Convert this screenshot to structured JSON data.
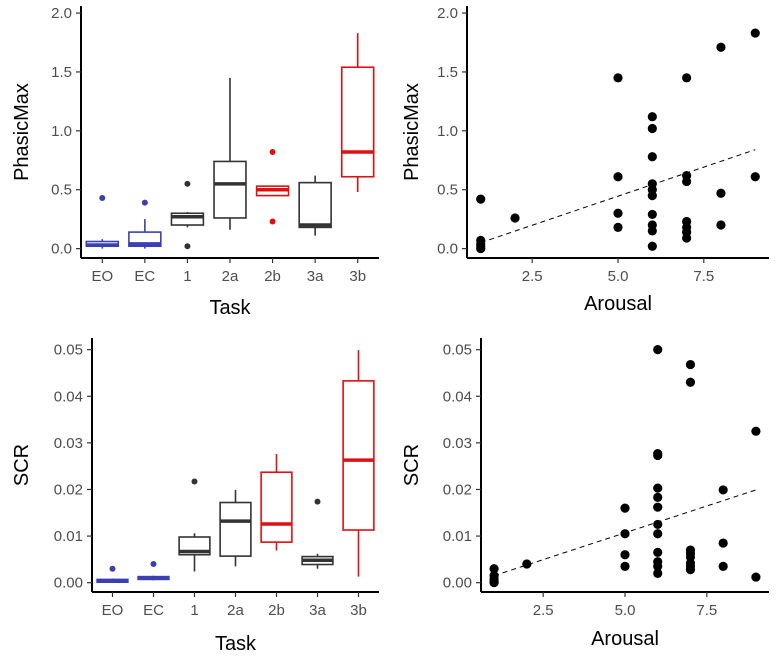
{
  "chart_data": [
    {
      "id": "p1",
      "type": "boxplot",
      "xlabel": "Task",
      "ylabel": "PhasicMax",
      "ylim": [
        -0.08,
        2.06
      ],
      "yticks": [
        0.0,
        0.5,
        1.0,
        1.5,
        2.0
      ],
      "ytick_labels": [
        "0.0",
        "0.5",
        "1.0",
        "1.5",
        "2.0"
      ],
      "categories": [
        "EO",
        "EC",
        "1",
        "2a",
        "2b",
        "3a",
        "3b"
      ],
      "colors": [
        "#3a40b4",
        "#3a40b4",
        "#333333",
        "#333333",
        "#dd1111",
        "#333333",
        "#dd1111"
      ],
      "boxes": [
        {
          "category": "EO",
          "q1": 0.02,
          "median": 0.03,
          "q3": 0.06,
          "whisker_low": 0.0,
          "whisker_high": 0.08,
          "outliers": [
            0.43
          ]
        },
        {
          "category": "EC",
          "q1": 0.02,
          "median": 0.04,
          "q3": 0.14,
          "whisker_low": 0.0,
          "whisker_high": 0.25,
          "outliers": [
            0.39
          ]
        },
        {
          "category": "1",
          "q1": 0.2,
          "median": 0.27,
          "q3": 0.3,
          "whisker_low": 0.18,
          "whisker_high": 0.31,
          "outliers": [
            0.55,
            0.02
          ]
        },
        {
          "category": "2a",
          "q1": 0.26,
          "median": 0.55,
          "q3": 0.74,
          "whisker_low": 0.16,
          "whisker_high": 1.45,
          "outliers": []
        },
        {
          "category": "2b",
          "q1": 0.45,
          "median": 0.5,
          "q3": 0.53,
          "whisker_low": 0.45,
          "whisker_high": 0.53,
          "outliers": [
            0.82,
            0.23
          ]
        },
        {
          "category": "3a",
          "q1": 0.18,
          "median": 0.2,
          "q3": 0.56,
          "whisker_low": 0.11,
          "whisker_high": 0.62,
          "outliers": []
        },
        {
          "category": "3b",
          "q1": 0.61,
          "median": 0.82,
          "q3": 1.54,
          "whisker_low": 0.48,
          "whisker_high": 1.83,
          "outliers": []
        }
      ]
    },
    {
      "id": "p2",
      "type": "scatter",
      "xlabel": "Arousal",
      "ylabel": "PhasicMax",
      "xlim": [
        0.6,
        9.4
      ],
      "ylim": [
        -0.08,
        2.06
      ],
      "xticks": [
        2.5,
        5.0,
        7.5
      ],
      "xtick_labels": [
        "2.5",
        "5.0",
        "7.5"
      ],
      "yticks": [
        0.0,
        0.5,
        1.0,
        1.5,
        2.0
      ],
      "ytick_labels": [
        "0.0",
        "0.5",
        "1.0",
        "1.5",
        "2.0"
      ],
      "points": [
        [
          1,
          0.42
        ],
        [
          1,
          0.07
        ],
        [
          1,
          0.04
        ],
        [
          1,
          0.02
        ],
        [
          1,
          0.0
        ],
        [
          2,
          0.26
        ],
        [
          5,
          1.45
        ],
        [
          5,
          0.61
        ],
        [
          5,
          0.3
        ],
        [
          5,
          0.18
        ],
        [
          6,
          1.12
        ],
        [
          6,
          1.02
        ],
        [
          6,
          0.78
        ],
        [
          6,
          0.55
        ],
        [
          6,
          0.5
        ],
        [
          6,
          0.45
        ],
        [
          6,
          0.29
        ],
        [
          6,
          0.2
        ],
        [
          6,
          0.15
        ],
        [
          6,
          0.02
        ],
        [
          7,
          1.45
        ],
        [
          7,
          0.62
        ],
        [
          7,
          0.57
        ],
        [
          7,
          0.23
        ],
        [
          7,
          0.18
        ],
        [
          7,
          0.14
        ],
        [
          7,
          0.09
        ],
        [
          8,
          1.71
        ],
        [
          8,
          0.47
        ],
        [
          8,
          0.2
        ],
        [
          9,
          1.83
        ],
        [
          9,
          0.61
        ]
      ],
      "trend_line": {
        "x": [
          1,
          9
        ],
        "y": [
          0.05,
          0.84
        ],
        "style": "dashed"
      }
    },
    {
      "id": "p3",
      "type": "boxplot",
      "xlabel": "Task",
      "ylabel": "SCR",
      "ylim": [
        -0.002,
        0.0525
      ],
      "yticks": [
        0.0,
        0.01,
        0.02,
        0.03,
        0.04,
        0.05
      ],
      "ytick_labels": [
        "0.00",
        "0.01",
        "0.02",
        "0.03",
        "0.04",
        "0.05"
      ],
      "categories": [
        "EO",
        "EC",
        "1",
        "2a",
        "2b",
        "3a",
        "3b"
      ],
      "colors": [
        "#3a40b4",
        "#3a40b4",
        "#333333",
        "#333333",
        "#dd1111",
        "#333333",
        "#dd1111"
      ],
      "boxes": [
        {
          "category": "EO",
          "q1": 0.0001,
          "median": 0.0003,
          "q3": 0.0007,
          "whisker_low": 0.0,
          "whisker_high": 0.0009,
          "outliers": [
            0.003
          ]
        },
        {
          "category": "EC",
          "q1": 0.0007,
          "median": 0.001,
          "q3": 0.0013,
          "whisker_low": 0.0005,
          "whisker_high": 0.0015,
          "outliers": [
            0.004
          ]
        },
        {
          "category": "1",
          "q1": 0.006,
          "median": 0.0067,
          "q3": 0.0098,
          "whisker_low": 0.0024,
          "whisker_high": 0.0106,
          "outliers": [
            0.0217
          ]
        },
        {
          "category": "2a",
          "q1": 0.0057,
          "median": 0.0132,
          "q3": 0.0172,
          "whisker_low": 0.0035,
          "whisker_high": 0.0199,
          "outliers": []
        },
        {
          "category": "2b",
          "q1": 0.0087,
          "median": 0.0126,
          "q3": 0.0237,
          "whisker_low": 0.0069,
          "whisker_high": 0.0276,
          "outliers": []
        },
        {
          "category": "3a",
          "q1": 0.0039,
          "median": 0.0048,
          "q3": 0.0056,
          "whisker_low": 0.003,
          "whisker_high": 0.0062,
          "outliers": [
            0.0174
          ]
        },
        {
          "category": "3b",
          "q1": 0.0113,
          "median": 0.0263,
          "q3": 0.0433,
          "whisker_low": 0.0013,
          "whisker_high": 0.0499,
          "outliers": []
        }
      ]
    },
    {
      "id": "p4",
      "type": "scatter",
      "xlabel": "Arousal",
      "ylabel": "SCR",
      "xlim": [
        0.6,
        9.4
      ],
      "ylim": [
        -0.002,
        0.0525
      ],
      "xticks": [
        2.5,
        5.0,
        7.5
      ],
      "xtick_labels": [
        "2.5",
        "5.0",
        "7.5"
      ],
      "yticks": [
        0.0,
        0.01,
        0.02,
        0.03,
        0.04,
        0.05
      ],
      "ytick_labels": [
        "0.00",
        "0.01",
        "0.02",
        "0.03",
        "0.04",
        "0.05"
      ],
      "points": [
        [
          1,
          0.003
        ],
        [
          1,
          0.0015
        ],
        [
          1,
          0.0008
        ],
        [
          1,
          0.0003
        ],
        [
          1,
          0.0
        ],
        [
          2,
          0.004
        ],
        [
          5,
          0.016
        ],
        [
          5,
          0.0105
        ],
        [
          5,
          0.006
        ],
        [
          5,
          0.0035
        ],
        [
          6,
          0.05
        ],
        [
          6,
          0.0277
        ],
        [
          6,
          0.0273
        ],
        [
          6,
          0.0203
        ],
        [
          6,
          0.0183
        ],
        [
          6,
          0.0162
        ],
        [
          6,
          0.0125
        ],
        [
          6,
          0.0105
        ],
        [
          6,
          0.0065
        ],
        [
          6,
          0.0045
        ],
        [
          6,
          0.0035
        ],
        [
          6,
          0.002
        ],
        [
          7,
          0.0468
        ],
        [
          7,
          0.043
        ],
        [
          7,
          0.007
        ],
        [
          7,
          0.0063
        ],
        [
          7,
          0.0055
        ],
        [
          7,
          0.0042
        ],
        [
          7,
          0.0035
        ],
        [
          7,
          0.0028
        ],
        [
          8,
          0.0199
        ],
        [
          8,
          0.0085
        ],
        [
          8,
          0.0035
        ],
        [
          9,
          0.0325
        ],
        [
          9,
          0.0012
        ]
      ],
      "trend_line": {
        "x": [
          1,
          9
        ],
        "y": [
          0.0015,
          0.0199
        ],
        "style": "dashed"
      }
    }
  ]
}
